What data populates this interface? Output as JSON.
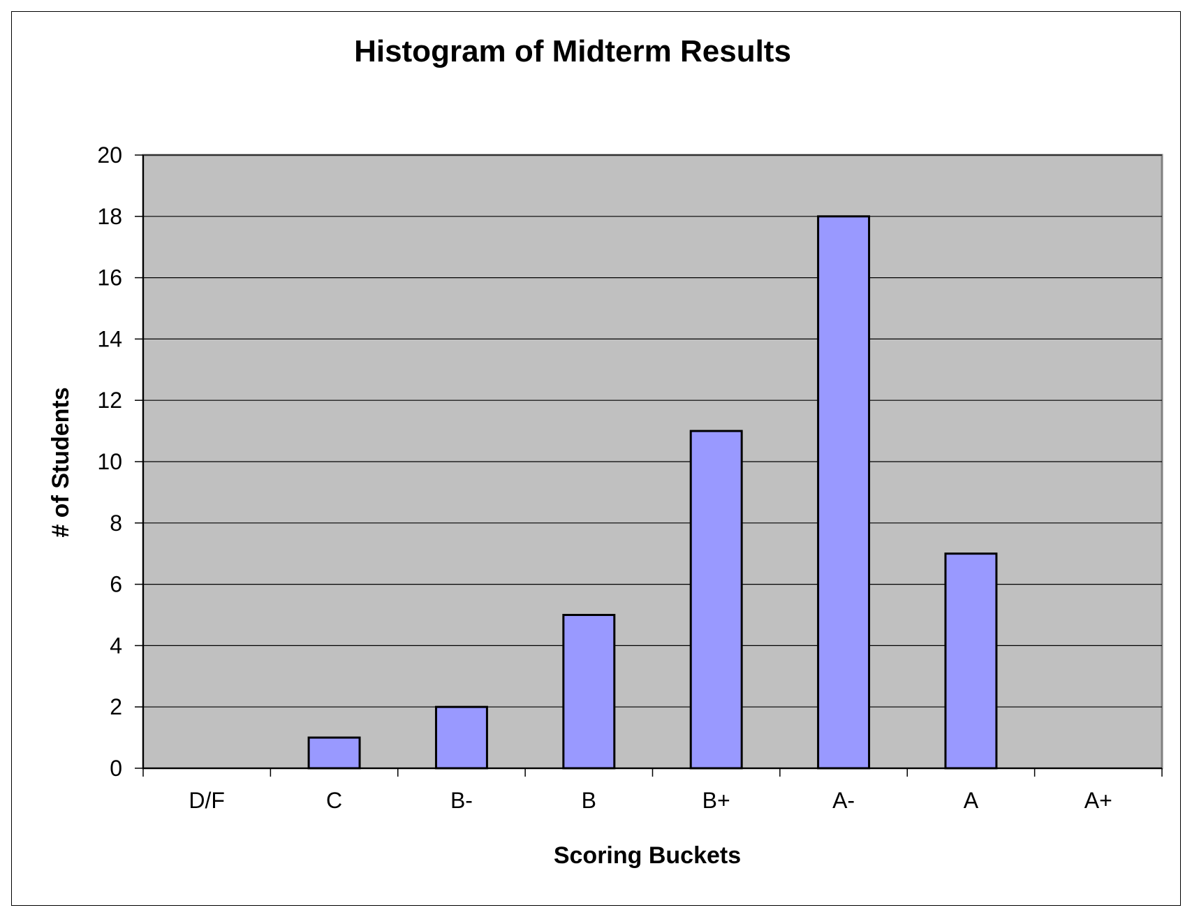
{
  "chart_data": {
    "type": "bar",
    "title": "Histogram of Midterm Results",
    "xlabel": "Scoring Buckets",
    "ylabel": "# of Students",
    "categories": [
      "D/F",
      "C",
      "B-",
      "B",
      "B+",
      "A-",
      "A",
      "A+"
    ],
    "values": [
      0,
      1,
      2,
      5,
      11,
      18,
      7,
      0
    ],
    "ylim": [
      0,
      20
    ],
    "yticks": [
      0,
      2,
      4,
      6,
      8,
      10,
      12,
      14,
      16,
      18,
      20
    ],
    "grid": true,
    "legend": "none",
    "colors": {
      "bar_fill": "#9999ff",
      "bar_stroke": "#000000",
      "plot_background": "#c0c0c0",
      "gridline": "#000000"
    }
  }
}
